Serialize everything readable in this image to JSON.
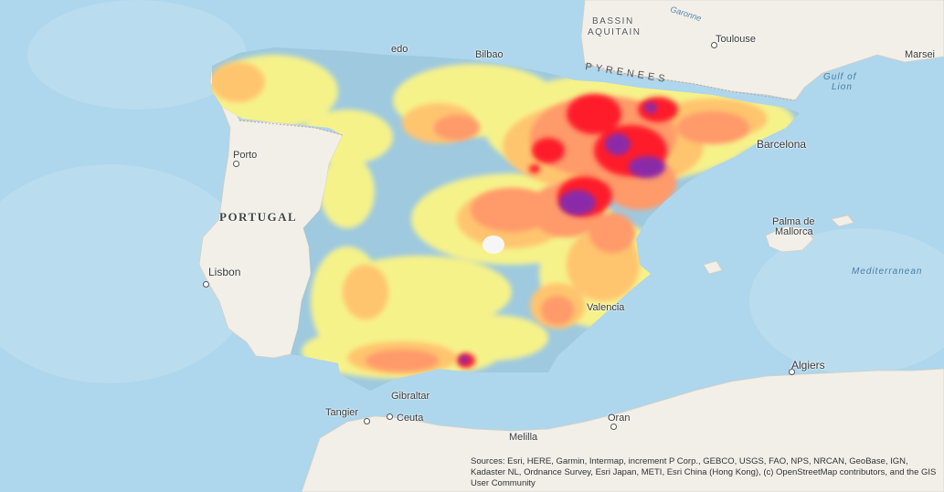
{
  "map": {
    "labels": {
      "bassin": "BASSIN",
      "aquitain": "AQUITAIN",
      "garonne": "Garonne",
      "toulouse": "Toulouse",
      "marseille": "Marsei",
      "pyrenees": "PYRENEES",
      "gulf_of": "Gulf of",
      "lion": "Lion",
      "bilbao": "Bilbao",
      "oviedo": "edo",
      "porto": "Porto",
      "portugal": "PORTUGAL",
      "lisbon": "Lisbon",
      "barcelona": "Barcelona",
      "palma": "Palma de",
      "mallorca": "Mallorca",
      "valencia": "Valencia",
      "mediterranean": "Mediterranean",
      "algiers": "Algiers",
      "gibraltar": "Gibraltar",
      "tangier": "Tangier",
      "ceuta": "Ceuta",
      "melilla": "Melilla",
      "oran": "Oran"
    },
    "colors": {
      "sea": "#aed6ec",
      "land": "#f2efe9",
      "low": "#9ec9df",
      "low_mid": "#f6f28a",
      "mid": "#ffc46e",
      "high": "#ff9a6a",
      "very_high": "#ff1a2a",
      "extreme": "#8b2aa8"
    },
    "attribution": "Sources: Esri, HERE, Garmin, Intermap, increment P Corp., GEBCO, USGS, FAO, NPS, NRCAN, GeoBase, IGN, Kadaster NL, Ordnance Survey, Esri Japan, METI, Esri China (Hong Kong), (c) OpenStreetMap contributors, and the GIS User Community"
  }
}
